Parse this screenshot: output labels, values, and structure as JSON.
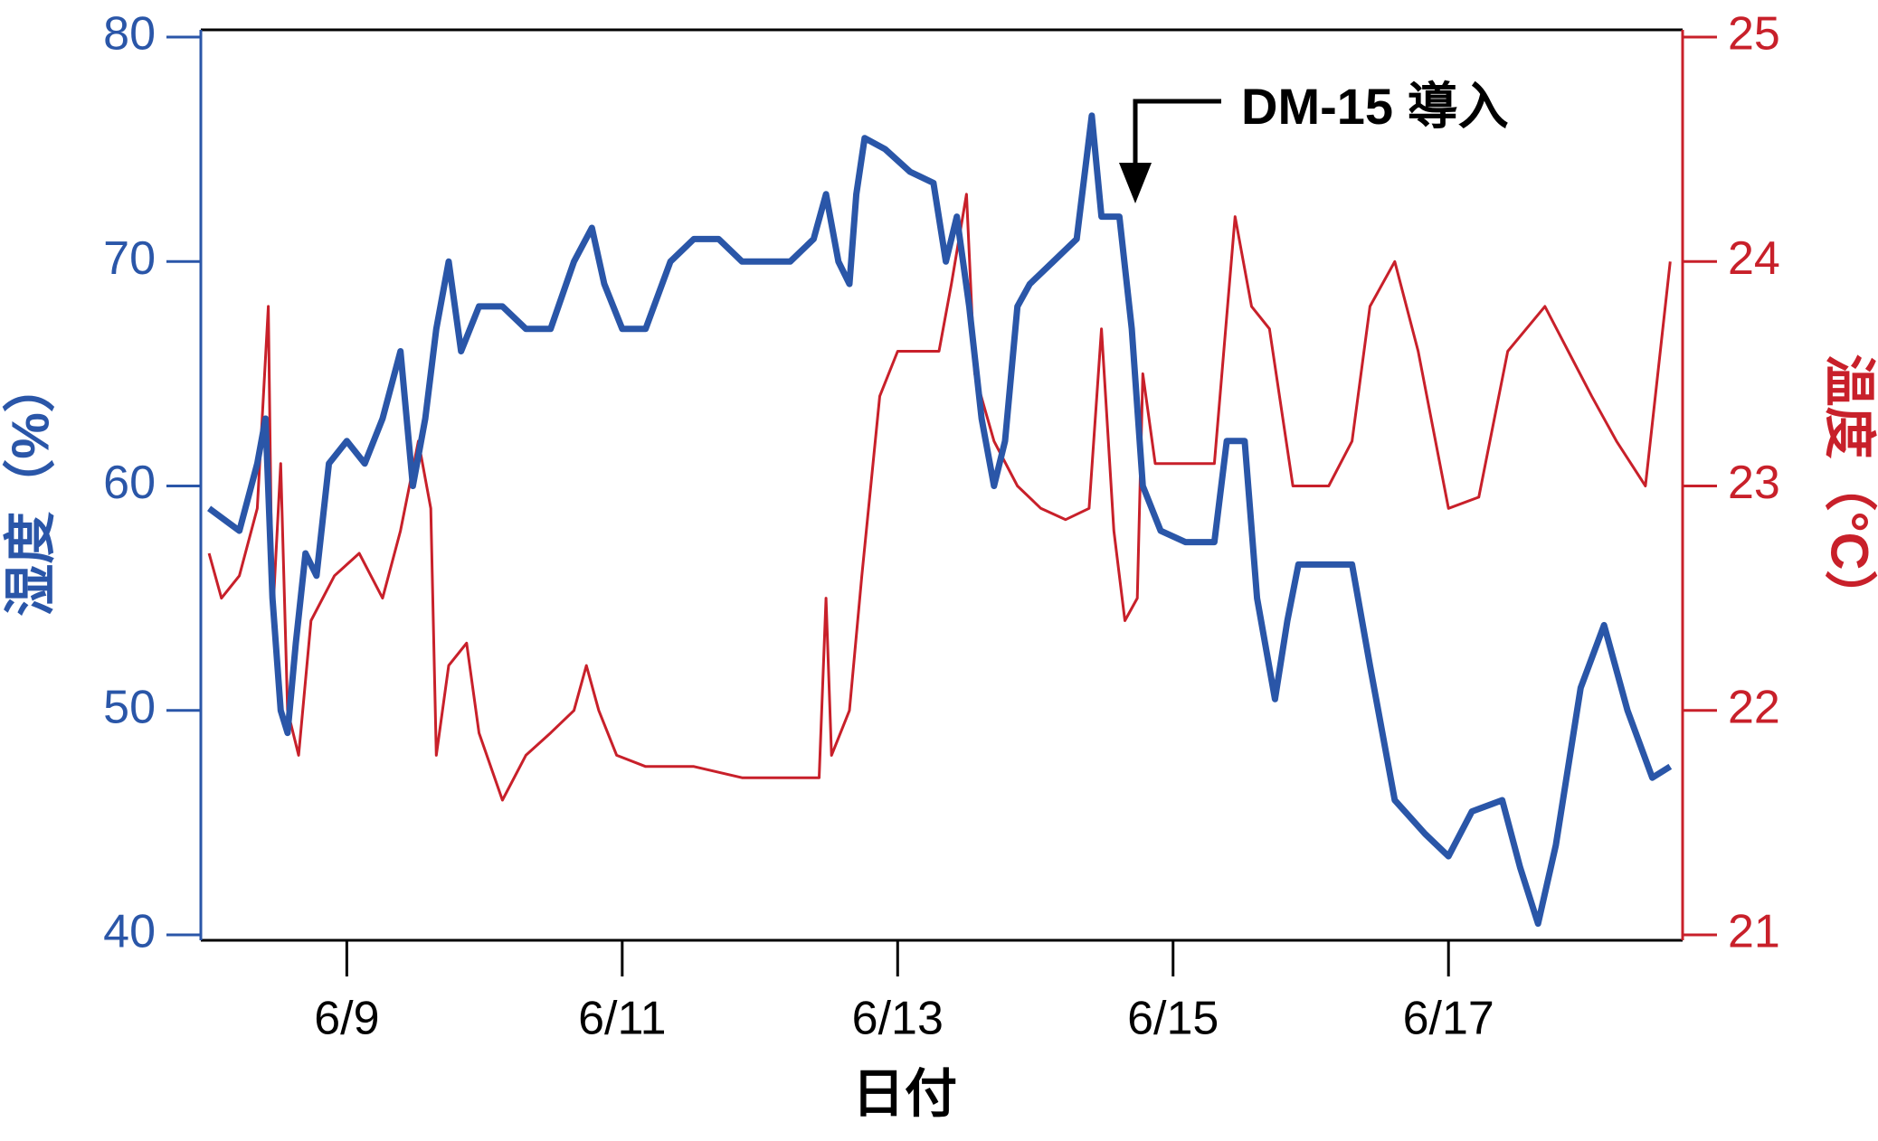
{
  "chart_data": {
    "type": "line",
    "xlabel": "日付",
    "ylabel": "湿度（%）",
    "y2label": "温度（°C）",
    "annotations": [
      {
        "text": "DM-15 導入"
      }
    ],
    "xlim": [
      7.94,
      18.7
    ],
    "xticks": [
      {
        "value": 9,
        "label": "6/9"
      },
      {
        "value": 11,
        "label": "6/11"
      },
      {
        "value": 13,
        "label": "6/13"
      },
      {
        "value": 15,
        "label": "6/15"
      },
      {
        "value": 17,
        "label": "6/17"
      }
    ],
    "ylim": [
      40,
      80
    ],
    "yticks": [
      40,
      50,
      60,
      70,
      80
    ],
    "y2lim": [
      21,
      25
    ],
    "y2ticks": [
      21,
      22,
      23,
      24,
      25
    ],
    "ycolor": "#2a56a8",
    "y2color": "#c8202a",
    "series": [
      {
        "color": "#2a56a8",
        "axis": "y",
        "x": [
          8.0,
          8.22,
          8.35,
          8.41,
          8.46,
          8.52,
          8.57,
          8.63,
          8.7,
          8.78,
          8.87,
          9.0,
          9.13,
          9.26,
          9.39,
          9.48,
          9.57,
          9.65,
          9.74,
          9.83,
          9.96,
          10.13,
          10.3,
          10.48,
          10.65,
          10.78,
          10.87,
          11.0,
          11.17,
          11.35,
          11.52,
          11.7,
          11.87,
          12.04,
          12.22,
          12.39,
          12.48,
          12.57,
          12.65,
          12.7,
          12.76,
          12.91,
          13.09,
          13.26,
          13.35,
          13.43,
          13.52,
          13.61,
          13.7,
          13.78,
          13.87,
          13.96,
          14.13,
          14.3,
          14.41,
          14.48,
          14.61,
          14.7,
          14.78,
          14.91,
          15.09,
          15.3,
          15.39,
          15.52,
          15.61,
          15.74,
          15.83,
          15.91,
          16.13,
          16.3,
          16.43,
          16.61,
          16.83,
          17.0,
          17.17,
          17.39,
          17.52,
          17.65,
          17.78,
          17.96,
          18.13,
          18.3,
          18.48,
          18.61
        ],
        "values": [
          59,
          58,
          61,
          63,
          55,
          50,
          49,
          53,
          57,
          56,
          61,
          62,
          61,
          63,
          66,
          60,
          63,
          67,
          70,
          66,
          68,
          68,
          67,
          67,
          70,
          71.5,
          69,
          67,
          67,
          70,
          71,
          71,
          70,
          70,
          70,
          71,
          73,
          70,
          69,
          73,
          75.5,
          75,
          74,
          73.5,
          70,
          72,
          68,
          63,
          60,
          62,
          68,
          69,
          70,
          71,
          76.5,
          72,
          72,
          67,
          60,
          58,
          57.5,
          57.5,
          62,
          62,
          55,
          50.5,
          54,
          56.5,
          56.5,
          56.5,
          52,
          46,
          44.5,
          43.5,
          45.5,
          46,
          43,
          40.5,
          44,
          51,
          53.8,
          50,
          47,
          47.5
        ]
      },
      {
        "color": "#c8202a",
        "axis": "y2",
        "x": [
          8.0,
          8.09,
          8.22,
          8.35,
          8.43,
          8.46,
          8.52,
          8.57,
          8.65,
          8.74,
          8.91,
          9.09,
          9.26,
          9.39,
          9.52,
          9.61,
          9.65,
          9.74,
          9.87,
          9.96,
          10.13,
          10.3,
          10.48,
          10.65,
          10.74,
          10.83,
          10.96,
          11.17,
          11.52,
          11.87,
          12.22,
          12.43,
          12.48,
          12.52,
          12.65,
          12.74,
          12.87,
          13.0,
          13.22,
          13.3,
          13.39,
          13.5,
          13.56,
          13.7,
          13.87,
          14.04,
          14.22,
          14.39,
          14.48,
          14.57,
          14.65,
          14.74,
          14.78,
          14.87,
          15.09,
          15.3,
          15.45,
          15.57,
          15.7,
          15.87,
          16.13,
          16.3,
          16.43,
          16.61,
          16.78,
          17.0,
          17.22,
          17.43,
          17.7,
          17.87,
          18.04,
          18.22,
          18.43,
          18.61
        ],
        "values": [
          22.7,
          22.5,
          22.6,
          22.9,
          23.8,
          22.4,
          23.1,
          22.0,
          21.8,
          22.4,
          22.6,
          22.7,
          22.5,
          22.8,
          23.2,
          22.9,
          21.8,
          22.2,
          22.3,
          21.9,
          21.6,
          21.8,
          21.9,
          22.0,
          22.2,
          22.0,
          21.8,
          21.75,
          21.75,
          21.7,
          21.7,
          21.7,
          22.5,
          21.8,
          22.0,
          22.6,
          23.4,
          23.6,
          23.6,
          23.6,
          23.9,
          24.3,
          23.5,
          23.2,
          23.0,
          22.9,
          22.85,
          22.9,
          23.7,
          22.8,
          22.4,
          22.5,
          23.5,
          23.1,
          23.1,
          23.1,
          24.2,
          23.8,
          23.7,
          23.0,
          23.0,
          23.2,
          23.8,
          24.0,
          23.6,
          22.9,
          22.95,
          23.6,
          23.8,
          23.6,
          23.4,
          23.2,
          23.0,
          24.0
        ]
      }
    ]
  }
}
